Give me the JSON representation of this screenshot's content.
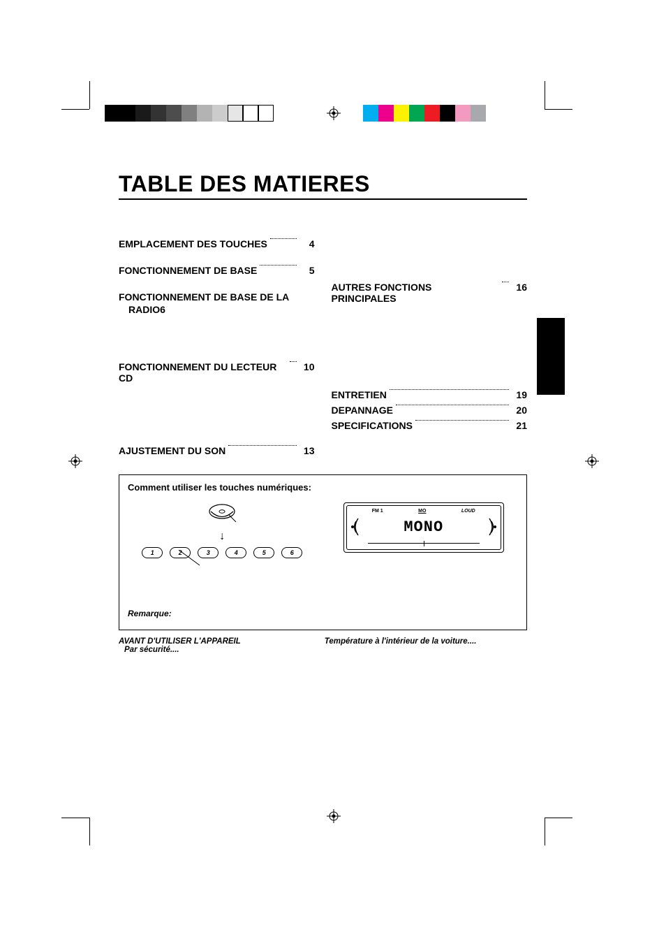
{
  "title": "TABLE DES MATIERES",
  "toc_left": [
    {
      "label": "EMPLACEMENT DES TOUCHES",
      "page": "4"
    },
    {
      "label": "FONCTIONNEMENT DE BASE",
      "page": "5"
    }
  ],
  "toc_left_wrapped": {
    "line1": "FONCTIONNEMENT DE BASE DE LA",
    "line2": "RADIO",
    "page": "6"
  },
  "toc_left_after": [
    {
      "label": "FONCTIONNEMENT DU LECTEUR CD",
      "page": "10"
    }
  ],
  "toc_left_bottom": [
    {
      "label": "AJUSTEMENT DU SON",
      "page": "13"
    }
  ],
  "toc_right_top": [
    {
      "label": "AUTRES FONCTIONS PRINCIPALES",
      "page": "16"
    }
  ],
  "toc_right_bottom": [
    {
      "label": "ENTRETIEN",
      "page": "19"
    },
    {
      "label": "DEPANNAGE",
      "page": "20"
    },
    {
      "label": "SPECIFICATIONS",
      "page": "21"
    }
  ],
  "box": {
    "title": "Comment utiliser les touches numériques:",
    "remark": "Remarque:",
    "buttons": [
      "1",
      "2",
      "3",
      "4",
      "5",
      "6"
    ],
    "lcd": {
      "fm": "FM 1",
      "mo": "MO",
      "loud": "LOUD",
      "main": "MONO"
    }
  },
  "footer": {
    "heading": "AVANT D'UTILISER L'APPAREIL",
    "sub": "Par sécurité....",
    "right": "Température à l'intérieur de la voiture...."
  },
  "print": {
    "gray_swatches": [
      "#000000",
      "#000000",
      "#1a1a1a",
      "#333333",
      "#4d4d4d",
      "#808080",
      "#b3b3b3",
      "#cccccc",
      "#e6e6e6",
      "#ffffff",
      "#ffffff"
    ],
    "color_swatches": [
      "#00aeef",
      "#ec008c",
      "#fff200",
      "#00a651",
      "#ed1c24",
      "#000000",
      "#f49ac1",
      "#a7a9ac"
    ]
  }
}
